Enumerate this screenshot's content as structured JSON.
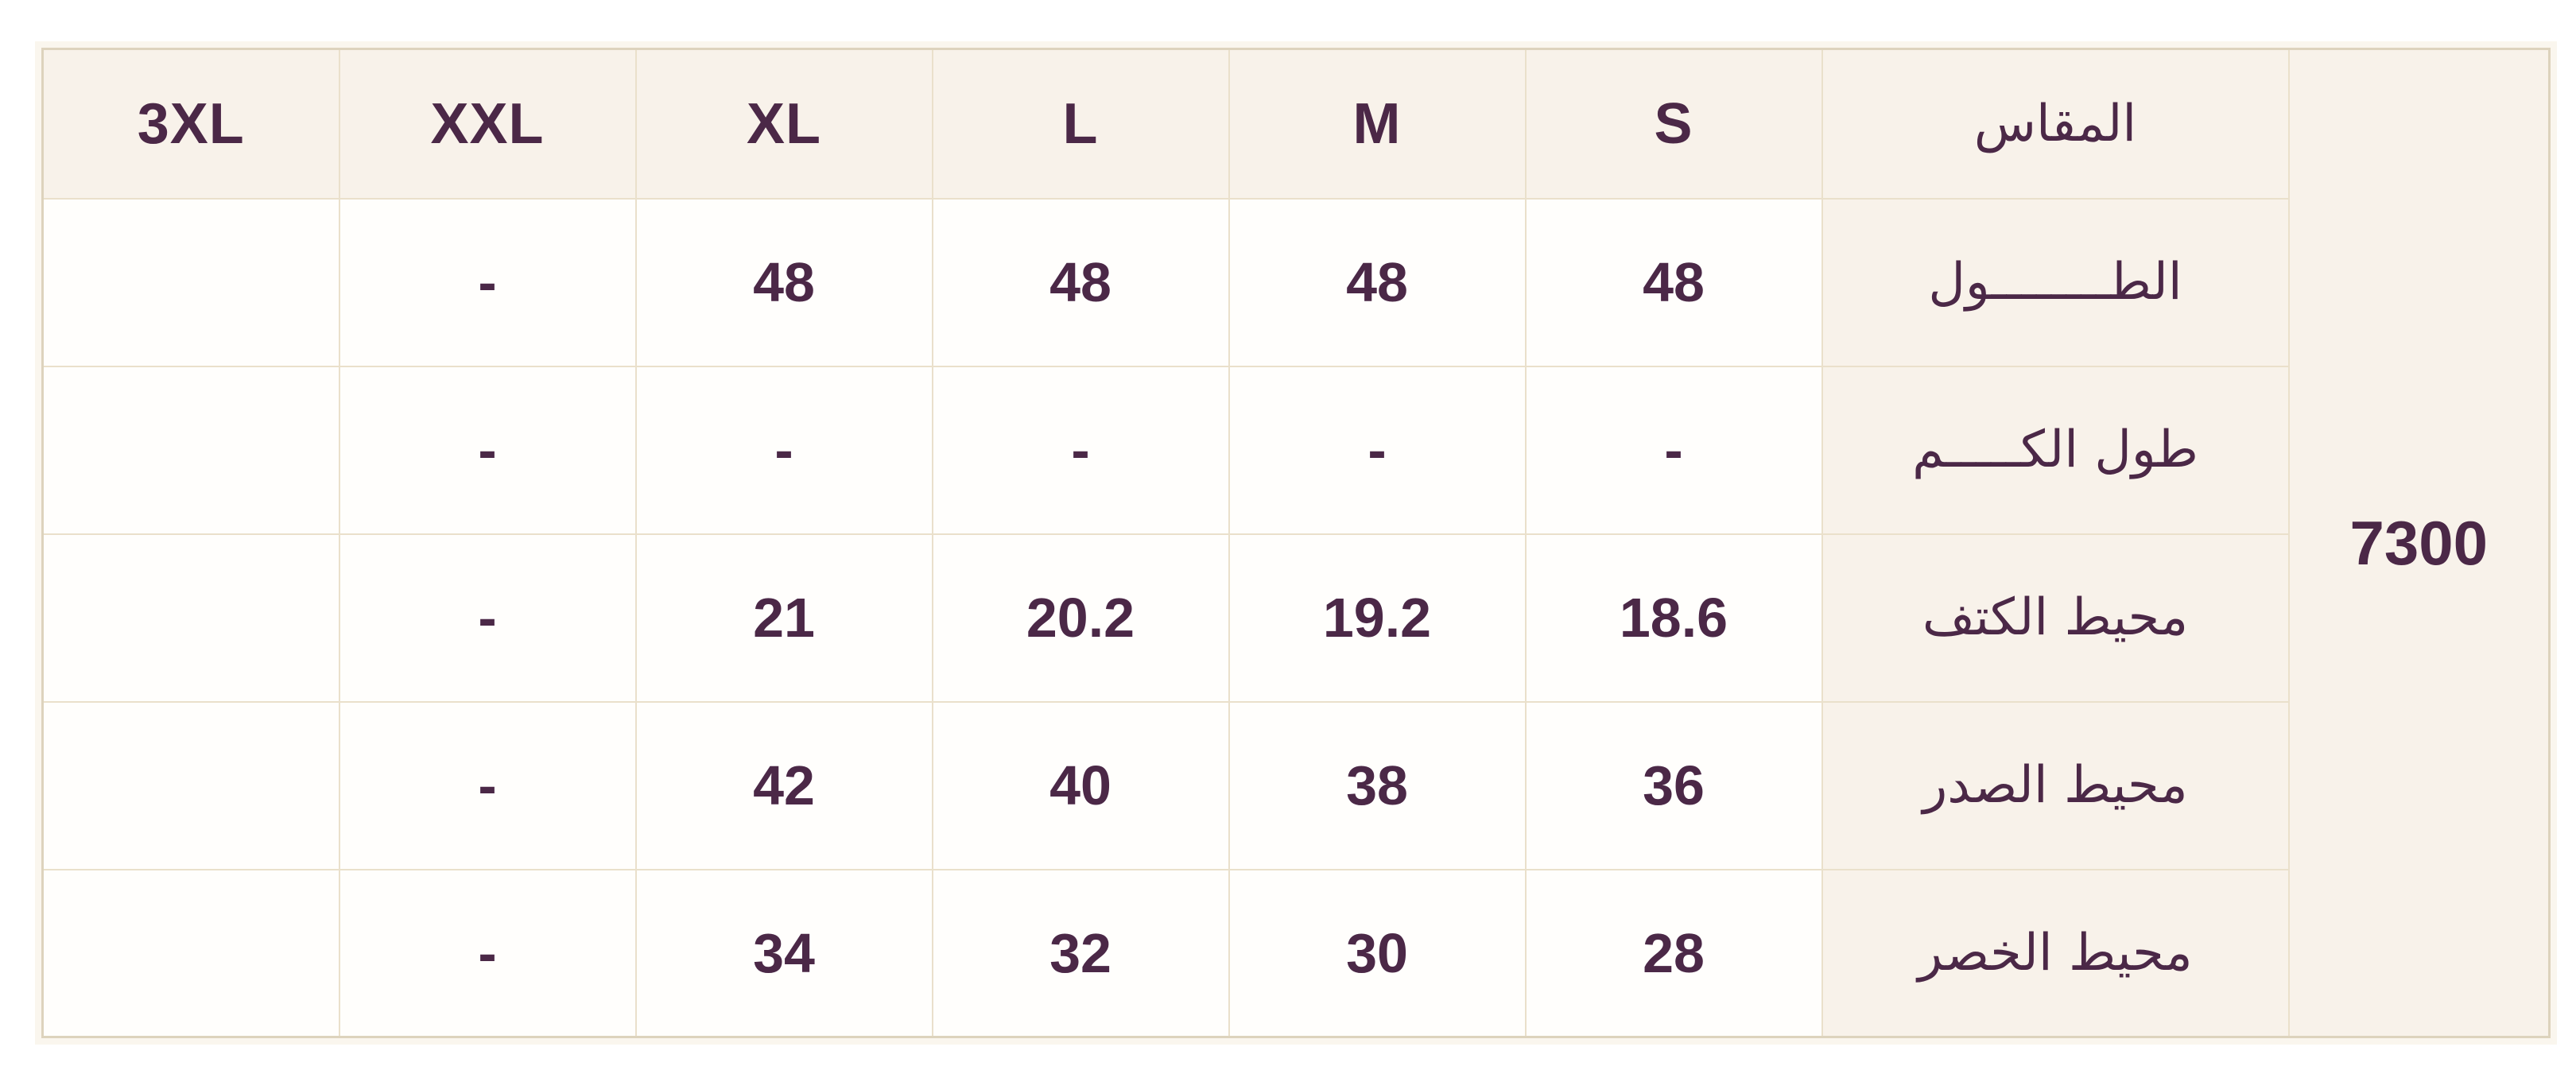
{
  "table": {
    "price": "7300",
    "header": {
      "size_label": "المقاس",
      "sizes": [
        "3XL",
        "XXL",
        "XL",
        "L",
        "M",
        "S"
      ]
    },
    "rows": [
      {
        "label": "الطــــــــول",
        "values": [
          "",
          "-",
          "48",
          "48",
          "48",
          "48"
        ]
      },
      {
        "label": "طول الكـــــم",
        "values": [
          "",
          "-",
          "-",
          "-",
          "-",
          "-"
        ]
      },
      {
        "label": "محيط الكتف",
        "values": [
          "",
          "-",
          "21",
          "20.2",
          "19.2",
          "18.6"
        ]
      },
      {
        "label": "محيط الصدر",
        "values": [
          "",
          "-",
          "42",
          "40",
          "38",
          "36"
        ]
      },
      {
        "label": "محيط الخصر",
        "values": [
          "",
          "-",
          "34",
          "32",
          "30",
          "28"
        ]
      }
    ],
    "colors": {
      "cell_cream": "#f8f2ea",
      "cell_white": "#fffefc",
      "grid_border": "#eae0cb",
      "outer_border": "#ddd3bd",
      "text_plum": "#4b2847"
    }
  }
}
